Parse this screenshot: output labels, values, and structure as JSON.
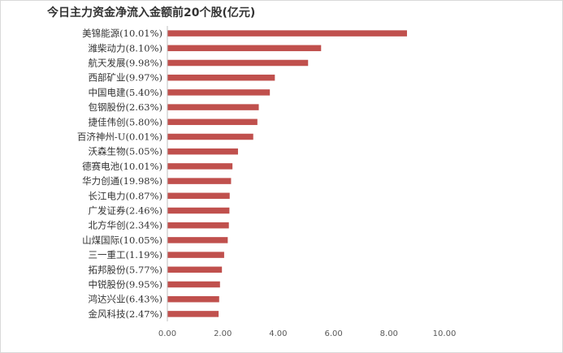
{
  "chart_data": {
    "type": "bar",
    "orientation": "horizontal",
    "title": "今日主力资金净流入金额前20个股(亿元)",
    "categories": [
      "美锦能源(10.01%)",
      "潍柴动力(8.10%)",
      "航天发展(9.98%)",
      "西部矿业(9.97%)",
      "中国电建(5.40%)",
      "包钢股份(2.63%)",
      "捷佳伟创(5.80%)",
      "百济神州-U(0.01%)",
      "沃森生物(5.05%)",
      "德赛电池(10.01%)",
      "华力创通(19.98%)",
      "长江电力(0.87%)",
      "广发证券(2.46%)",
      "北方华创(2.34%)",
      "山煤国际(10.05%)",
      "三一重工(1.19%)",
      "拓邦股份(5.77%)",
      "中锐股份(9.95%)",
      "鸿达兴业(6.43%)",
      "金风科技(2.47%)"
    ],
    "values": [
      8.65,
      5.55,
      5.08,
      3.88,
      3.7,
      3.3,
      3.25,
      3.1,
      2.55,
      2.35,
      2.3,
      2.25,
      2.24,
      2.22,
      2.18,
      2.05,
      1.97,
      1.9,
      1.87,
      1.85
    ],
    "xlim": [
      0,
      10
    ],
    "xticks": [
      "0.00",
      "2.00",
      "4.00",
      "6.00",
      "8.00",
      "10.00"
    ],
    "grid": false,
    "bar_color": "#c0504d",
    "axis_color": "#bfbfbf"
  }
}
